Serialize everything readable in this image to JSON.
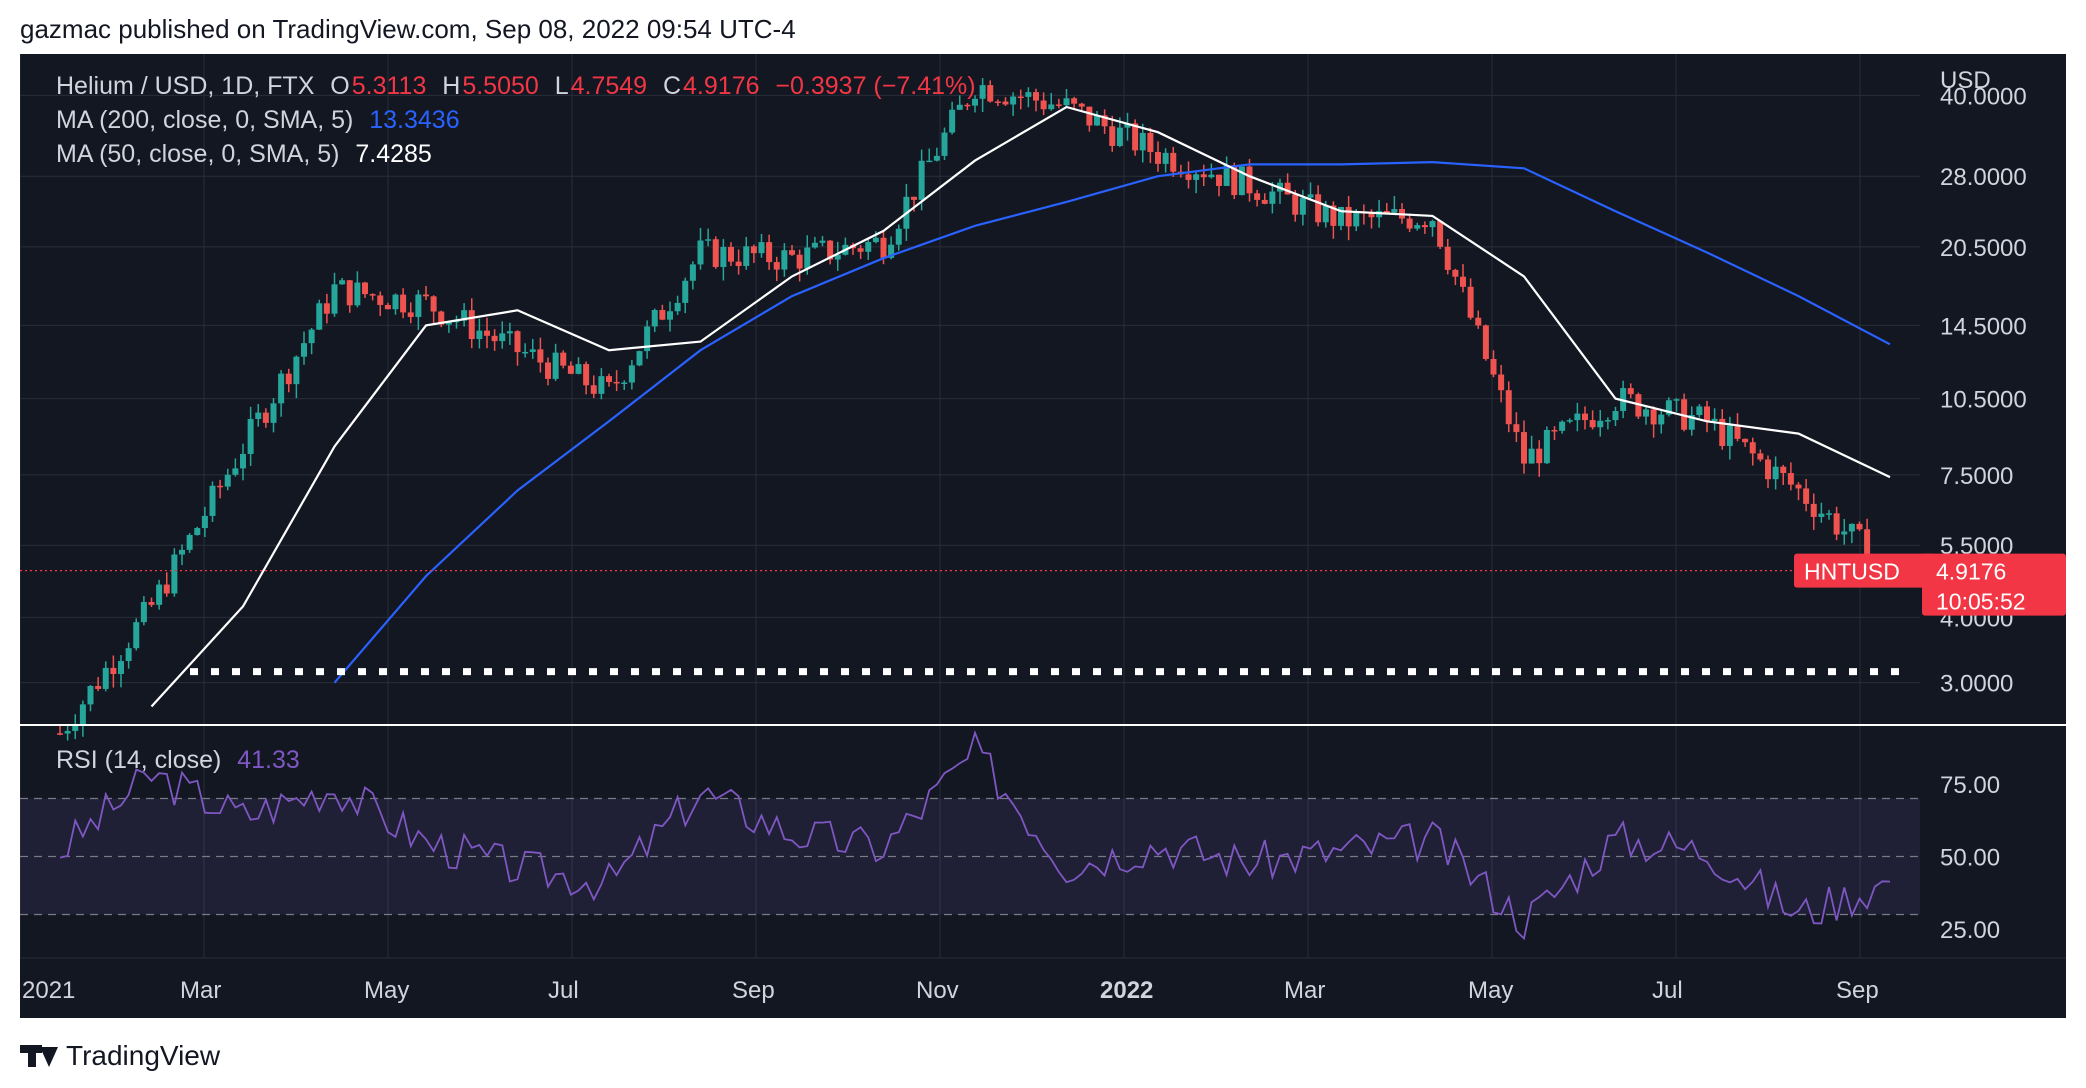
{
  "header": {
    "text": "gazmac published on TradingView.com, Sep 08, 2022 09:54 UTC-4"
  },
  "legend": {
    "symbol": "Helium / USD, 1D, FTX",
    "o_label": "O",
    "o_val": "5.3113",
    "h_label": "H",
    "h_val": "5.5050",
    "l_label": "L",
    "l_val": "4.7549",
    "c_label": "C",
    "c_val": "4.9176",
    "change": "−0.3937 (−7.41%)",
    "ma200_label": "MA (200, close, 0, SMA, 5)",
    "ma200_val": "13.3436",
    "ma50_label": "MA (50, close, 0, SMA, 5)",
    "ma50_val": "7.4285",
    "rsi_label": "RSI (14, close)",
    "rsi_val": "41.33"
  },
  "price_axis": {
    "unit": "USD",
    "ticks": [
      "40.0000",
      "28.0000",
      "20.5000",
      "14.5000",
      "10.5000",
      "7.5000",
      "5.5000",
      "4.0000",
      "3.0000"
    ]
  },
  "price_tag": {
    "symbol": "HNTUSD",
    "price": "4.9176",
    "countdown": "10:05:52"
  },
  "rsi_axis": {
    "ticks": [
      "75.00",
      "50.00",
      "25.00"
    ]
  },
  "time_axis": [
    "2021",
    "Mar",
    "May",
    "Jul",
    "Sep",
    "Nov",
    "2022",
    "Mar",
    "May",
    "Jul",
    "Sep"
  ],
  "footer": {
    "brand": "TradingView"
  },
  "colors": {
    "up": "#26a69a",
    "down": "#ef5350",
    "ma200": "#2962ff",
    "ma50": "#ffffff",
    "rsi": "#7e57c2",
    "bg": "#131722"
  },
  "chart_data": [
    {
      "type": "candlestick",
      "title": "Helium / USD, 1D, FTX",
      "y_scale": "log",
      "ylim": [
        2.5,
        48
      ],
      "x": [
        "2021-01",
        "2021-02",
        "2021-03",
        "2021-04",
        "2021-05",
        "2021-06",
        "2021-07",
        "2021-08",
        "2021-09",
        "2021-10",
        "2021-11",
        "2021-12",
        "2022-01",
        "2022-02",
        "2022-03",
        "2022-04",
        "2022-05",
        "2022-06",
        "2022-07",
        "2022-08",
        "2022-09"
      ],
      "close": [
        2.4,
        4.2,
        8.5,
        17.0,
        16.0,
        13.0,
        10.8,
        20.0,
        19.5,
        21.0,
        42.0,
        38.0,
        31.0,
        27.0,
        23.0,
        23.5,
        8.0,
        10.5,
        9.5,
        7.0,
        4.92
      ],
      "support_level": 3.15,
      "last_price": 4.9176,
      "series": [
        {
          "name": "MA (200, close, 0, SMA, 5)",
          "last": 13.3436,
          "values": [
            null,
            null,
            null,
            3.0,
            4.8,
            7.0,
            9.5,
            13.0,
            16.5,
            19.5,
            22.5,
            25.0,
            28.0,
            29.5,
            29.5,
            29.8,
            29.0,
            24.0,
            20.0,
            16.5,
            13.3436
          ]
        },
        {
          "name": "MA (50, close, 0, SMA, 5)",
          "last": 7.4285,
          "values": [
            null,
            2.7,
            4.2,
            8.5,
            14.5,
            15.5,
            13.0,
            13.5,
            18.0,
            22.0,
            30.0,
            38.0,
            34.0,
            28.0,
            24.0,
            23.5,
            18.0,
            10.5,
            9.5,
            9.0,
            7.4285
          ]
        }
      ]
    },
    {
      "type": "line",
      "title": "RSI (14, close)",
      "ylim": [
        15,
        95
      ],
      "levels": [
        70,
        50,
        30
      ],
      "x": [
        "2021-01",
        "2021-02",
        "2021-03",
        "2021-04",
        "2021-05",
        "2021-06",
        "2021-07",
        "2021-08",
        "2021-09",
        "2021-10",
        "2021-11",
        "2021-12",
        "2022-01",
        "2022-02",
        "2022-03",
        "2022-04",
        "2022-05",
        "2022-06",
        "2022-07",
        "2022-08",
        "2022-09"
      ],
      "series": [
        {
          "name": "RSI (14, close)",
          "last": 41.33,
          "values": [
            52,
            78,
            64,
            74,
            55,
            46,
            41,
            72,
            58,
            53,
            86,
            47,
            54,
            48,
            52,
            56,
            28,
            56,
            52,
            30,
            41.33
          ]
        }
      ]
    }
  ]
}
